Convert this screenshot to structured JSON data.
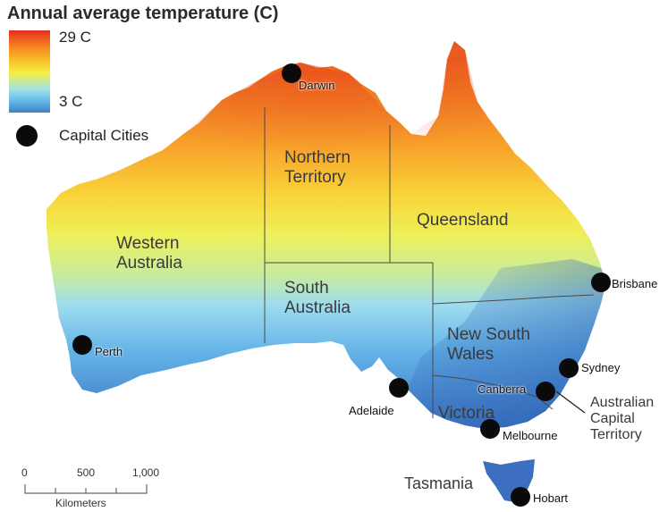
{
  "title": "Annual average temperature (C)",
  "legend": {
    "max_label": "29 C",
    "min_label": "3 C",
    "capital_label": "Capital Cities",
    "gradient_colors": [
      "#e0301e",
      "#f57c21",
      "#f9c52a",
      "#f3ef44",
      "#9fe0ea",
      "#64b8e8",
      "#3d7fc8"
    ]
  },
  "regions": {
    "western_australia": [
      "Western",
      "Australia"
    ],
    "northern_territory": [
      "Northern",
      "Territory"
    ],
    "queensland": "Queensland",
    "south_australia": [
      "South",
      "Australia"
    ],
    "new_south_wales": [
      "New South",
      "Wales"
    ],
    "victoria": "Victoria",
    "act": [
      "Australian",
      "Capital",
      "Territory"
    ],
    "tasmania": "Tasmania"
  },
  "cities": {
    "darwin": "Darwin",
    "perth": "Perth",
    "adelaide": "Adelaide",
    "brisbane": "Brisbane",
    "sydney": "Sydney",
    "canberra": "Canberra",
    "melbourne": "Melbourne",
    "hobart": "Hobart"
  },
  "scale": {
    "ticks": [
      "0",
      "500",
      "1,000"
    ],
    "unit": "Kilometers"
  }
}
